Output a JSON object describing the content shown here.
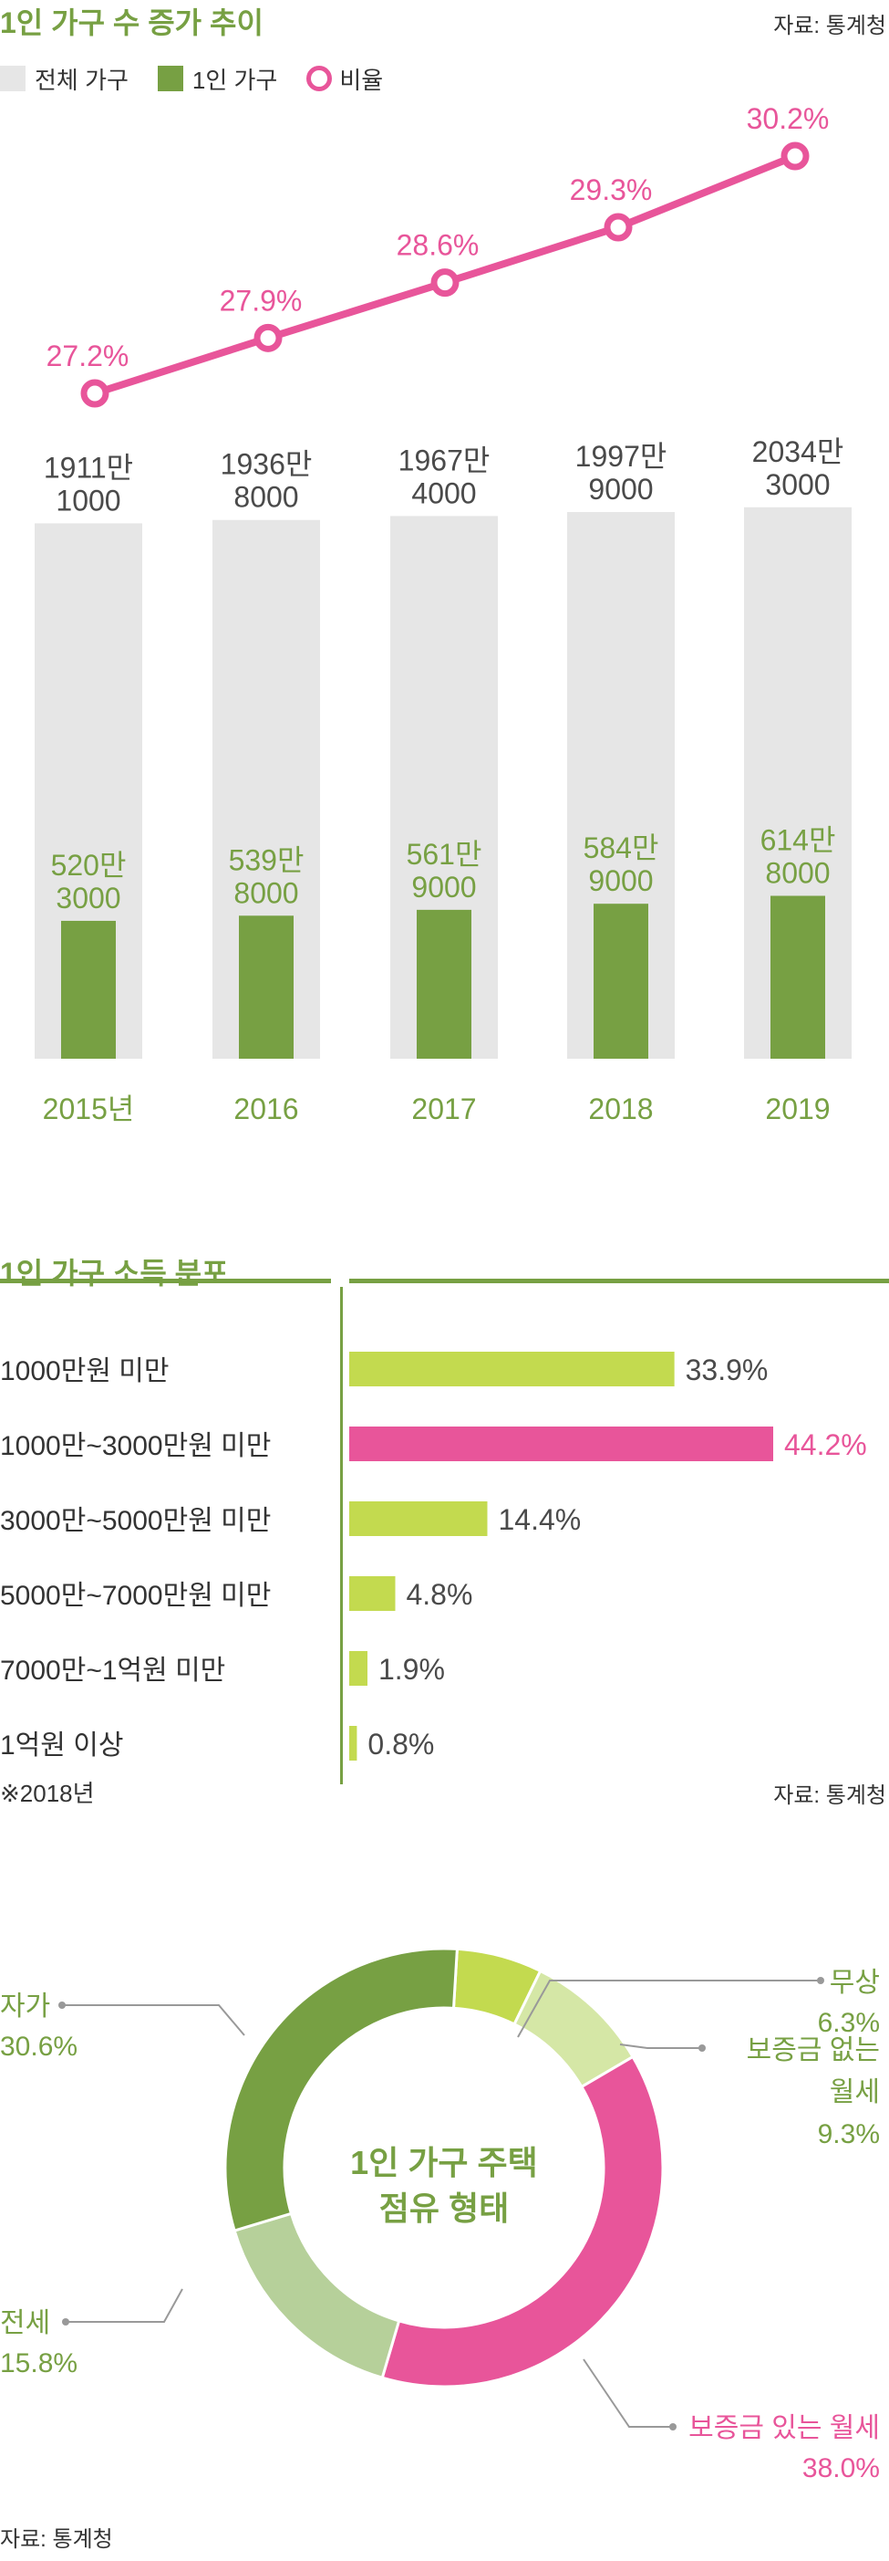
{
  "colors": {
    "green": "#77a043",
    "light_green": "#c3da4f",
    "pale_green": "#d5e7a6",
    "sage": "#b6d09a",
    "pink": "#e8559a",
    "gray_bar": "#e6e6e6",
    "text_gray": "#4a4a4a"
  },
  "section1": {
    "title": "1인 가구 수 증가 추이",
    "source": "자료: 통계청",
    "legend": {
      "total": "전체 가구",
      "single": "1인 가구",
      "ratio": "비율"
    }
  },
  "section2": {
    "title": "1인 가구 소득 분포",
    "footnote": "※2018년",
    "source": "자료: 통계청"
  },
  "section3": {
    "center_line1": "1인 가구 주택",
    "center_line2": "점유 형태",
    "source": "자료: 통계청"
  },
  "chart_data": [
    {
      "type": "bar",
      "title": "1인 가구 수 증가 추이",
      "categories": [
        "2015년",
        "2016",
        "2017",
        "2018",
        "2019"
      ],
      "series": [
        {
          "name": "전체 가구",
          "values": [
            19111000,
            19368000,
            19674000,
            19979000,
            20343000
          ],
          "labels": [
            [
              "1911만",
              "1000"
            ],
            [
              "1936만",
              "8000"
            ],
            [
              "1967만",
              "4000"
            ],
            [
              "1997만",
              "9000"
            ],
            [
              "2034만",
              "3000"
            ]
          ]
        },
        {
          "name": "1인 가구",
          "values": [
            5203000,
            5398000,
            5619000,
            5849000,
            6148000
          ],
          "labels": [
            [
              "520만",
              "3000"
            ],
            [
              "539만",
              "8000"
            ],
            [
              "561만",
              "9000"
            ],
            [
              "584만",
              "9000"
            ],
            [
              "614만",
              "8000"
            ]
          ]
        },
        {
          "name": "비율",
          "values": [
            27.2,
            27.9,
            28.6,
            29.3,
            30.2
          ],
          "labels": [
            "27.2%",
            "27.9%",
            "28.6%",
            "29.3%",
            "30.2%"
          ]
        }
      ]
    },
    {
      "type": "bar",
      "title": "1인 가구 소득 분포",
      "categories": [
        "1000만원 미만",
        "1000만~3000만원 미만",
        "3000만~5000만원 미만",
        "5000만~7000만원 미만",
        "7000만~1억원 미만",
        "1억원 이상"
      ],
      "values": [
        33.9,
        44.2,
        14.4,
        4.8,
        1.9,
        0.8
      ],
      "labels": [
        "33.9%",
        "44.2%",
        "14.4%",
        "4.8%",
        "1.9%",
        "0.8%"
      ],
      "highlight_index": 1
    },
    {
      "type": "pie",
      "title": "1인 가구 주택 점유 형태",
      "slices": [
        {
          "label": "무상",
          "value": 6.3,
          "text": "6.3%",
          "color": "#c3da4f"
        },
        {
          "label": "보증금 없는 월세",
          "lines": [
            "보증금 없는",
            "월세"
          ],
          "value": 9.3,
          "text": "9.3%",
          "color": "#d5e7a6"
        },
        {
          "label": "보증금 있는 월세",
          "value": 38.0,
          "text": "38.0%",
          "color": "#e8559a"
        },
        {
          "label": "전세",
          "value": 15.8,
          "text": "15.8%",
          "color": "#b6d09a"
        },
        {
          "label": "자가",
          "value": 30.6,
          "text": "30.6%",
          "color": "#77a043"
        }
      ]
    }
  ]
}
